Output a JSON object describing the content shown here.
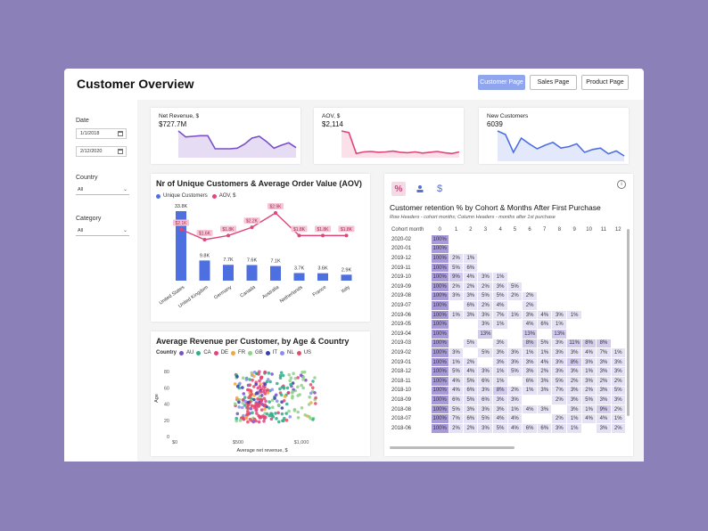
{
  "title": "Customer Overview",
  "nav": {
    "customer": "Customer Page",
    "sales": "Sales Page",
    "product": "Product Page"
  },
  "filters": {
    "date_label": "Date",
    "date_from": "1/1/2018",
    "date_to": "2/12/2020",
    "country_label": "Country",
    "country_value": "All",
    "category_label": "Category",
    "category_value": "All"
  },
  "kpis": [
    {
      "label": "Net Revenue, $",
      "value": "$727.7M",
      "color": "#7a4fc7",
      "fill": "#e6ddf5",
      "spark": [
        42,
        32,
        33,
        34,
        34,
        12,
        12,
        12,
        13,
        20,
        30,
        33,
        24,
        13,
        18,
        22,
        14
      ]
    },
    {
      "label": "AOV, $",
      "value": "$2,114",
      "color": "#e0457a",
      "fill": "#fbe0ea",
      "spark": [
        62,
        58,
        6,
        10,
        11,
        9,
        10,
        12,
        9,
        8,
        10,
        7,
        9,
        11,
        8,
        6,
        10
      ]
    },
    {
      "label": "New Customers",
      "value": "6039",
      "color": "#4e6fe0",
      "fill": "#e3e8fa",
      "spark": [
        40,
        35,
        10,
        30,
        22,
        15,
        20,
        24,
        16,
        18,
        22,
        10,
        14,
        16,
        8,
        12,
        5
      ]
    }
  ],
  "bar_chart": {
    "title": "Nr of Unique Customers & Average Order Value (AOV)",
    "legend": [
      "Unique Customers",
      "AOV, $"
    ],
    "colors": {
      "bar": "#4e6fe0",
      "line": "#e0457a"
    },
    "chart_data": {
      "type": "bar",
      "categories": [
        "United States",
        "United Kingdom",
        "Germany",
        "Canada",
        "Australia",
        "Netherlands",
        "France",
        "Italy"
      ],
      "series": [
        {
          "name": "Unique Customers",
          "values": [
            33.8,
            9.8,
            7.7,
            7.6,
            7.1,
            3.7,
            3.6,
            2.9
          ],
          "labels": [
            "33.8K",
            "9.8K",
            "7.7K",
            "7.6K",
            "7.1K",
            "3.7K",
            "3.6K",
            "2.9K"
          ]
        },
        {
          "name": "AOV, $",
          "values": [
            2.1,
            1.6,
            1.8,
            2.2,
            2.9,
            1.8,
            1.8,
            1.8
          ],
          "labels": [
            "$2.1K",
            "$1.6K",
            "$1.8K",
            "$2.2K",
            "$2.9K",
            "$1.8K",
            "$1.8K",
            "$1.8K"
          ]
        }
      ]
    }
  },
  "scatter": {
    "title": "Average Revenue per Customer, by Age & Country",
    "legend_title": "Country",
    "countries": [
      {
        "name": "AU",
        "color": "#7a4fc7"
      },
      {
        "name": "CA",
        "color": "#2fae8a"
      },
      {
        "name": "DE",
        "color": "#e0457a"
      },
      {
        "name": "FR",
        "color": "#f4a640"
      },
      {
        "name": "GB",
        "color": "#8fd18a"
      },
      {
        "name": "IT",
        "color": "#3a3fa8"
      },
      {
        "name": "NL",
        "color": "#8c8cf0"
      },
      {
        "name": "US",
        "color": "#e84a6a"
      }
    ],
    "chart_data": {
      "type": "scatter",
      "xlabel": "Average net revenue, $",
      "ylabel": "Age",
      "x_ticks": [
        "$0",
        "$500",
        "$1,000"
      ],
      "y_ticks": [
        "0",
        "20",
        "40",
        "60",
        "80"
      ],
      "xlim": [
        0,
        1500
      ],
      "ylim": [
        0,
        90
      ]
    }
  },
  "retention": {
    "title": "Customer retention % by Cohort & Months After First Purchase",
    "subtitle": "Row Headers - cohort months; Column Headers - months after 1st purchase",
    "corner": "Cohort month",
    "months": [
      "0",
      "1",
      "2",
      "3",
      "4",
      "5",
      "6",
      "7",
      "8",
      "9",
      "10",
      "11",
      "12"
    ],
    "rows": [
      {
        "cohort": "2020-02",
        "v": [
          "100%"
        ]
      },
      {
        "cohort": "2020-01",
        "v": [
          "100%"
        ]
      },
      {
        "cohort": "2019-12",
        "v": [
          "100%",
          "2%",
          "1%"
        ]
      },
      {
        "cohort": "2019-11",
        "v": [
          "100%",
          "5%",
          "6%"
        ]
      },
      {
        "cohort": "2019-10",
        "v": [
          "100%",
          "9%",
          "4%",
          "3%",
          "1%"
        ]
      },
      {
        "cohort": "2019-09",
        "v": [
          "100%",
          "2%",
          "2%",
          "2%",
          "3%",
          "5%"
        ]
      },
      {
        "cohort": "2019-08",
        "v": [
          "100%",
          "3%",
          "3%",
          "5%",
          "5%",
          "2%",
          "2%"
        ]
      },
      {
        "cohort": "2019-07",
        "v": [
          "100%",
          "",
          "6%",
          "2%",
          "4%",
          "",
          "2%"
        ]
      },
      {
        "cohort": "2019-06",
        "v": [
          "100%",
          "1%",
          "3%",
          "3%",
          "7%",
          "1%",
          "3%",
          "4%",
          "3%",
          "1%"
        ]
      },
      {
        "cohort": "2019-05",
        "v": [
          "100%",
          "",
          "",
          "3%",
          "1%",
          "",
          "4%",
          "6%",
          "1%"
        ]
      },
      {
        "cohort": "2019-04",
        "v": [
          "100%",
          "",
          "",
          "13%",
          "",
          "",
          "13%",
          "",
          "13%"
        ]
      },
      {
        "cohort": "2019-03",
        "v": [
          "100%",
          "",
          "5%",
          "",
          "3%",
          "",
          "8%",
          "5%",
          "3%",
          "11%",
          "8%",
          "8%"
        ]
      },
      {
        "cohort": "2019-02",
        "v": [
          "100%",
          "3%",
          "",
          "5%",
          "3%",
          "3%",
          "1%",
          "1%",
          "3%",
          "3%",
          "4%",
          "7%",
          "1%"
        ]
      },
      {
        "cohort": "2019-01",
        "v": [
          "100%",
          "1%",
          "2%",
          "",
          "3%",
          "3%",
          "3%",
          "4%",
          "3%",
          "8%",
          "3%",
          "3%",
          "3%"
        ]
      },
      {
        "cohort": "2018-12",
        "v": [
          "100%",
          "5%",
          "4%",
          "3%",
          "1%",
          "5%",
          "3%",
          "2%",
          "3%",
          "3%",
          "1%",
          "3%",
          "3%"
        ]
      },
      {
        "cohort": "2018-11",
        "v": [
          "100%",
          "4%",
          "5%",
          "6%",
          "1%",
          "",
          "6%",
          "3%",
          "5%",
          "2%",
          "3%",
          "2%",
          "2%"
        ]
      },
      {
        "cohort": "2018-10",
        "v": [
          "100%",
          "4%",
          "6%",
          "3%",
          "8%",
          "2%",
          "1%",
          "3%",
          "7%",
          "3%",
          "2%",
          "3%",
          "5%"
        ]
      },
      {
        "cohort": "2018-09",
        "v": [
          "100%",
          "6%",
          "5%",
          "6%",
          "3%",
          "3%",
          "",
          "",
          "2%",
          "3%",
          "5%",
          "3%",
          "3%"
        ]
      },
      {
        "cohort": "2018-08",
        "v": [
          "100%",
          "5%",
          "3%",
          "3%",
          "3%",
          "1%",
          "4%",
          "3%",
          "",
          "3%",
          "1%",
          "9%",
          "2%"
        ]
      },
      {
        "cohort": "2018-07",
        "v": [
          "100%",
          "7%",
          "6%",
          "5%",
          "4%",
          "4%",
          "",
          "",
          "2%",
          "1%",
          "4%",
          "4%",
          "1%"
        ]
      },
      {
        "cohort": "2018-06",
        "v": [
          "100%",
          "2%",
          "2%",
          "3%",
          "5%",
          "4%",
          "6%",
          "6%",
          "3%",
          "1%",
          "",
          "3%",
          "2%"
        ]
      }
    ]
  }
}
